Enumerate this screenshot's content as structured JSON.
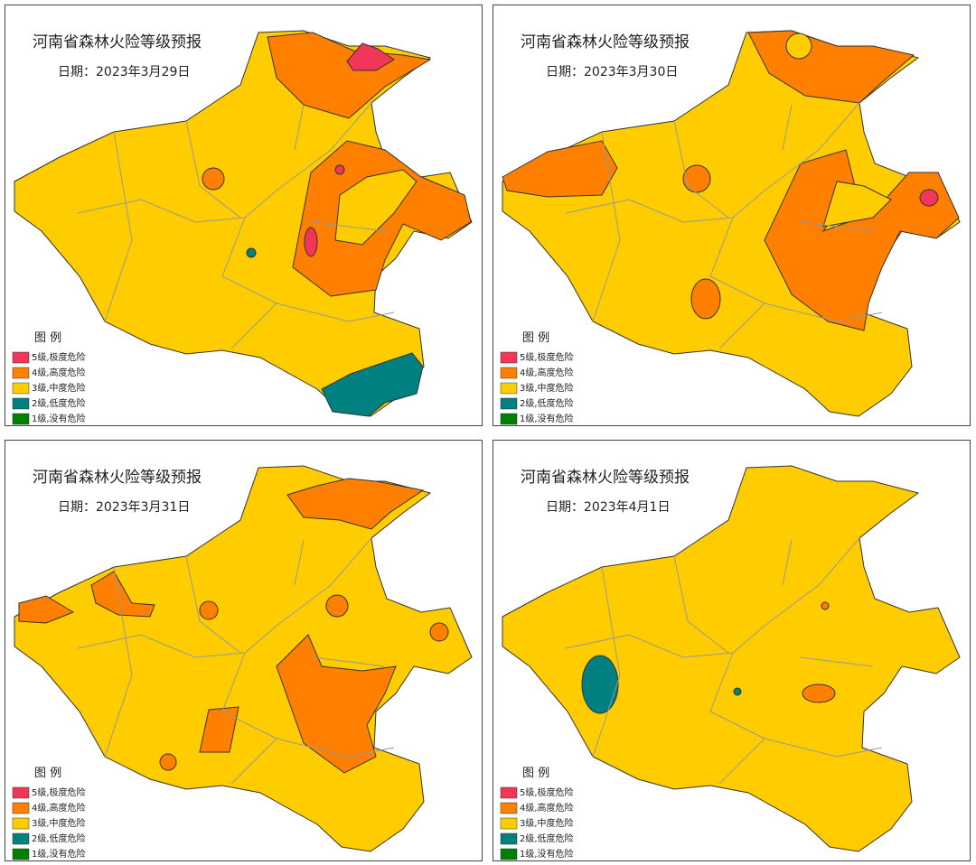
{
  "panels": [
    {
      "title": "河南省森林火险等级预报",
      "date": "日期：2023年3月29日"
    },
    {
      "title": "河南省森林火险等级预报",
      "date": "日期：2023年3月30日"
    },
    {
      "title": "河南省森林火险等级预报",
      "date": "日期：2023年3月31日"
    },
    {
      "title": "河南省森林火险等级预报",
      "date": "日期：2023年4月1日"
    }
  ],
  "legend": {
    "title": "图  例",
    "items": [
      {
        "label": "5级,极度危险",
        "color": "#f2365a"
      },
      {
        "label": "4级,高度危险",
        "color": "#ff8000"
      },
      {
        "label": "3级,中度危险",
        "color": "#ffcc00"
      },
      {
        "label": "2级,低度危险",
        "color": "#008080"
      },
      {
        "label": "1级,没有危险",
        "color": "#008000"
      }
    ]
  }
}
